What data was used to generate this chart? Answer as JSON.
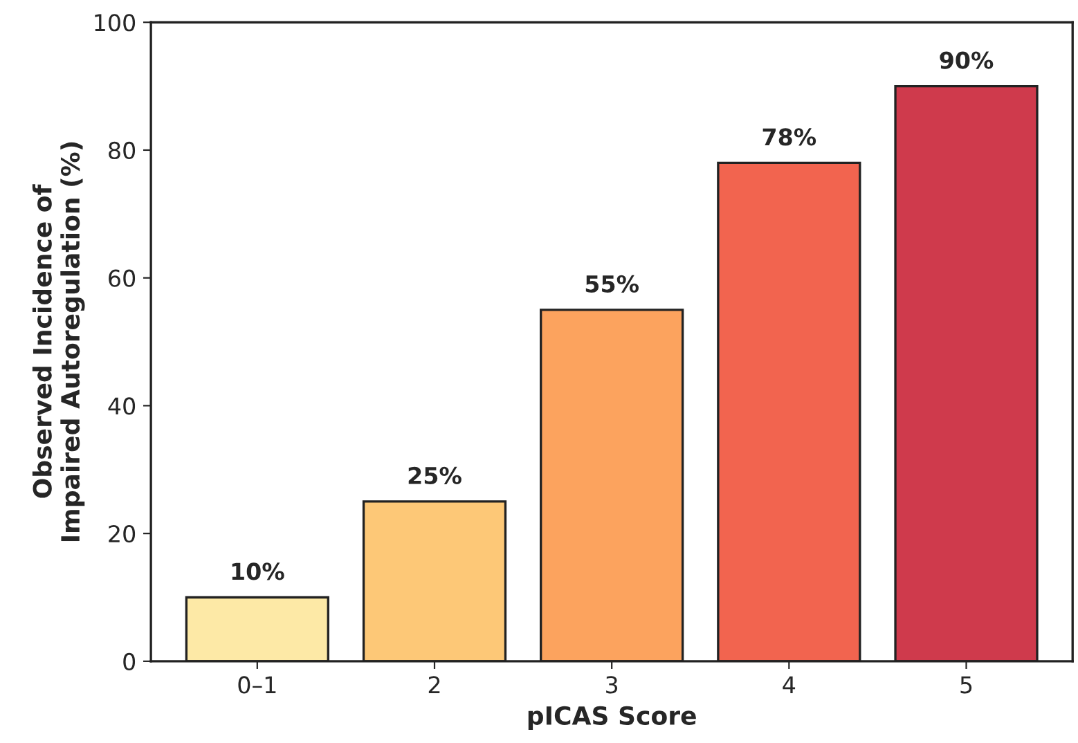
{
  "chart_data": {
    "type": "bar",
    "xlabel": "pICAS Score",
    "ylabel": "Observed Incidence of\nImpaired Autoregulation (%)",
    "categories": [
      "0–1",
      "2",
      "3",
      "4",
      "5"
    ],
    "values": [
      10,
      25,
      55,
      78,
      90
    ],
    "colors": [
      "#fde9a6",
      "#fdc877",
      "#fca35e",
      "#f2644f",
      "#cf3a4c"
    ],
    "value_labels": [
      "10%",
      "25%",
      "55%",
      "78%",
      "90%"
    ],
    "ylim": [
      0,
      100
    ],
    "yticks": [
      0,
      20,
      40,
      60,
      80,
      100
    ],
    "grid": false,
    "legend": false
  }
}
